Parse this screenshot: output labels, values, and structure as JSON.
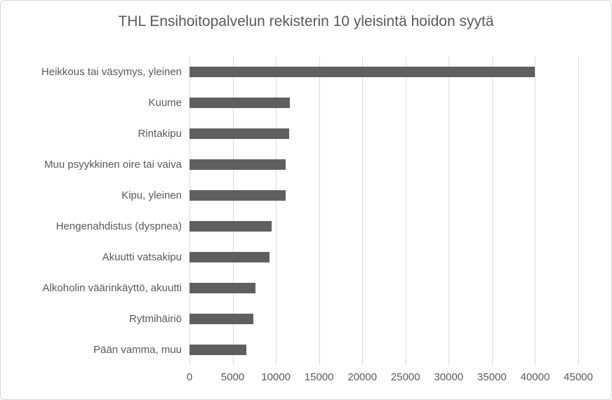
{
  "chart": {
    "title": "THL Ensihoitopalvelun rekisterin 10 yleisintä hoidon syytä"
  },
  "chart_data": {
    "type": "bar",
    "orientation": "horizontal",
    "title": "THL Ensihoitopalvelun rekisterin 10 yleisintä hoidon syytä",
    "categories": [
      "Heikkous tai väsymys, yleinen",
      "Kuume",
      "Rintakipu",
      "Muu psyykkinen oire tai vaiva",
      "Kipu, yleinen",
      "Hengenahdistus (dyspnea)",
      "Akuutti vatsakipu",
      "Alkoholin väärinkäyttö, akuutti",
      "Rytmihäiriö",
      "Pään vamma, muu"
    ],
    "values": [
      40000,
      11600,
      11500,
      11100,
      11100,
      9500,
      9300,
      7600,
      7400,
      6600
    ],
    "xlabel": "",
    "ylabel": "",
    "xlim": [
      0,
      45000
    ],
    "xticks": [
      0,
      5000,
      10000,
      15000,
      20000,
      25000,
      30000,
      35000,
      40000,
      45000
    ],
    "xtick_labels": [
      "0",
      "5000",
      "10000",
      "15000",
      "20000",
      "25000",
      "30000",
      "35000",
      "40000",
      "45000"
    ],
    "grid": true,
    "legend": false,
    "colors": {
      "bar": "#5f5f5f",
      "text": "#595959",
      "gridline": "#d9d9d9",
      "border": "#d7d7d7",
      "background": "#ffffff"
    }
  }
}
